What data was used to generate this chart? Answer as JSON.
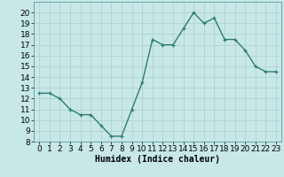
{
  "x": [
    0,
    1,
    2,
    3,
    4,
    5,
    6,
    7,
    8,
    9,
    10,
    11,
    12,
    13,
    14,
    15,
    16,
    17,
    18,
    19,
    20,
    21,
    22,
    23
  ],
  "y": [
    12.5,
    12.5,
    12.0,
    11.0,
    10.5,
    10.5,
    9.5,
    8.5,
    8.5,
    11.0,
    13.5,
    17.5,
    17.0,
    17.0,
    18.5,
    20.0,
    19.0,
    19.5,
    17.5,
    17.5,
    16.5,
    15.0,
    14.5,
    14.5
  ],
  "line_color": "#2e7d6e",
  "marker": "+",
  "bg_color": "#c8e8e8",
  "grid_color": "#aacece",
  "xlabel": "Humidex (Indice chaleur)",
  "ylim": [
    8,
    21
  ],
  "xlim": [
    -0.5,
    23.5
  ],
  "yticks": [
    8,
    9,
    10,
    11,
    12,
    13,
    14,
    15,
    16,
    17,
    18,
    19,
    20
  ],
  "xticks": [
    0,
    1,
    2,
    3,
    4,
    5,
    6,
    7,
    8,
    9,
    10,
    11,
    12,
    13,
    14,
    15,
    16,
    17,
    18,
    19,
    20,
    21,
    22,
    23
  ],
  "xlabel_fontsize": 7,
  "tick_fontsize": 6.5,
  "linewidth": 1.0
}
